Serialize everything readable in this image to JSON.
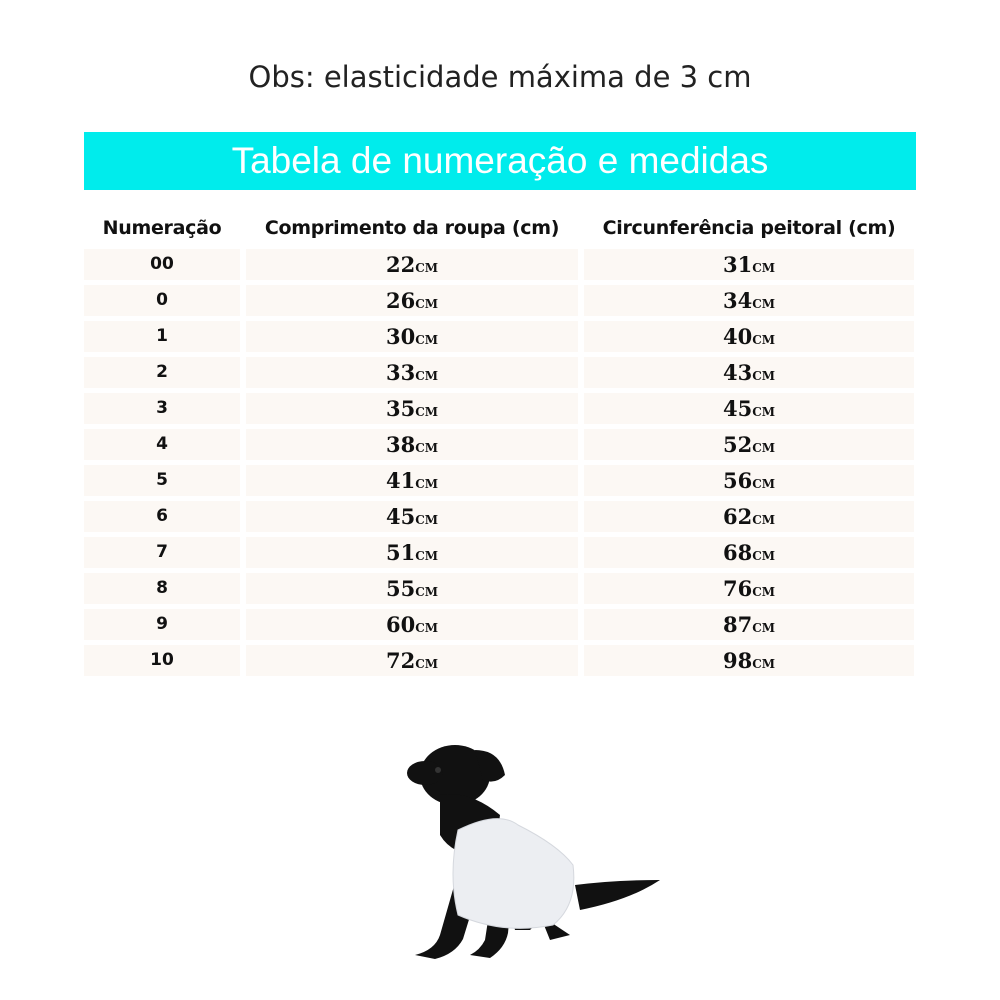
{
  "note": "Obs: elasticidade máxima de 3 cm",
  "banner_title": "Tabela de numeração e medidas",
  "colors": {
    "banner": "#00ecec",
    "cell_bg": "#fcf8f4"
  },
  "table": {
    "headers": [
      "Numeração",
      "Comprimento da roupa (cm)",
      "Circunferência peitoral (cm)"
    ],
    "unit": "cm",
    "rows": [
      {
        "size": "00",
        "length": "22",
        "chest": "31"
      },
      {
        "size": "0",
        "length": "26",
        "chest": "34"
      },
      {
        "size": "1",
        "length": "30",
        "chest": "40"
      },
      {
        "size": "2",
        "length": "33",
        "chest": "43"
      },
      {
        "size": "3",
        "length": "35",
        "chest": "45"
      },
      {
        "size": "4",
        "length": "38",
        "chest": "52"
      },
      {
        "size": "5",
        "length": "41",
        "chest": "56"
      },
      {
        "size": "6",
        "length": "45",
        "chest": "62"
      },
      {
        "size": "7",
        "length": "51",
        "chest": "68"
      },
      {
        "size": "8",
        "length": "55",
        "chest": "76"
      },
      {
        "size": "9",
        "length": "60",
        "chest": "87"
      },
      {
        "size": "10",
        "length": "72",
        "chest": "98"
      }
    ]
  },
  "image": "black dog wearing white shirt"
}
